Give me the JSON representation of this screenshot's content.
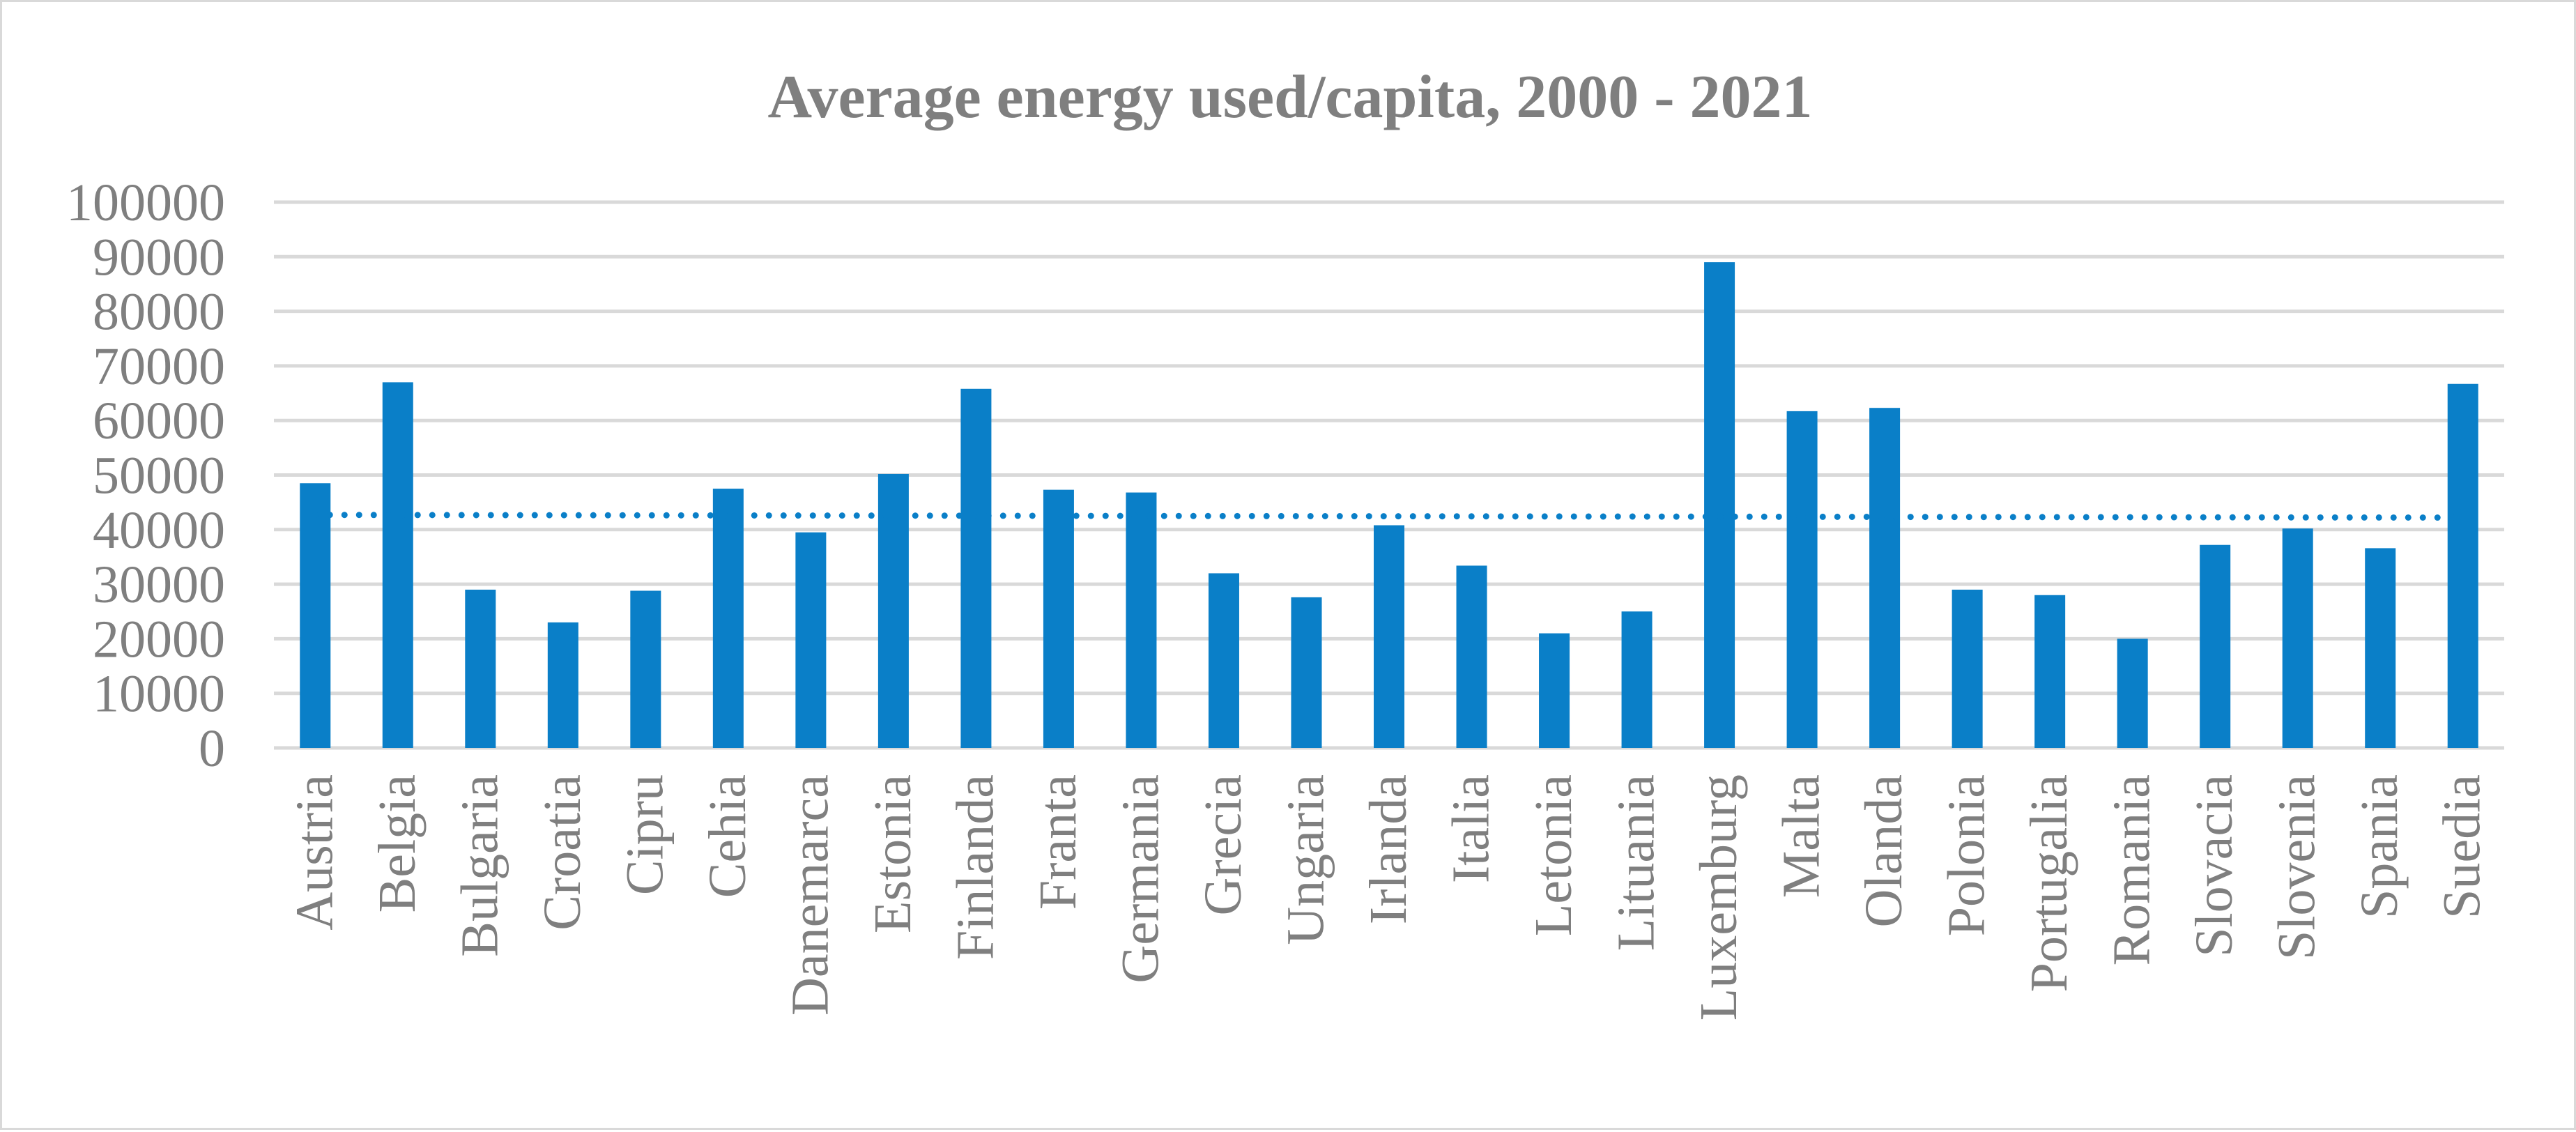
{
  "chart_data": {
    "type": "bar",
    "title": "Average energy used/capita, 2000 - 2021",
    "xlabel": "",
    "ylabel": "",
    "ylim": [
      0,
      100000
    ],
    "yticks": [
      0,
      10000,
      20000,
      30000,
      40000,
      50000,
      60000,
      70000,
      80000,
      90000,
      100000
    ],
    "grid": true,
    "categories": [
      "Austria",
      "Belgia",
      "Bulgaria",
      "Croatia",
      "Cipru",
      "Cehia",
      "Danemarca",
      "Estonia",
      "Finlanda",
      "Franta",
      "Germania",
      "Grecia",
      "Ungaria",
      "Irlanda",
      "Italia",
      "Letonia",
      "Lituania",
      "Luxemburg",
      "Malta",
      "Olanda",
      "Polonia",
      "Portugalia",
      "Romania",
      "Slovacia",
      "Slovenia",
      "Spania",
      "Suedia"
    ],
    "series": [
      {
        "name": "Average energy used/capita",
        "color": "#0a7fc8",
        "values": [
          48500,
          67000,
          29000,
          23000,
          28800,
          47500,
          39500,
          50200,
          65800,
          47300,
          46800,
          32000,
          27600,
          40800,
          33400,
          21000,
          25000,
          89000,
          61700,
          62300,
          29000,
          28000,
          20000,
          37200,
          40200,
          36600,
          66700
        ]
      }
    ],
    "trendline": {
      "type": "linear",
      "style": "dotted",
      "color": "#0a7fc8",
      "start": 42700,
      "end": 42200
    }
  }
}
